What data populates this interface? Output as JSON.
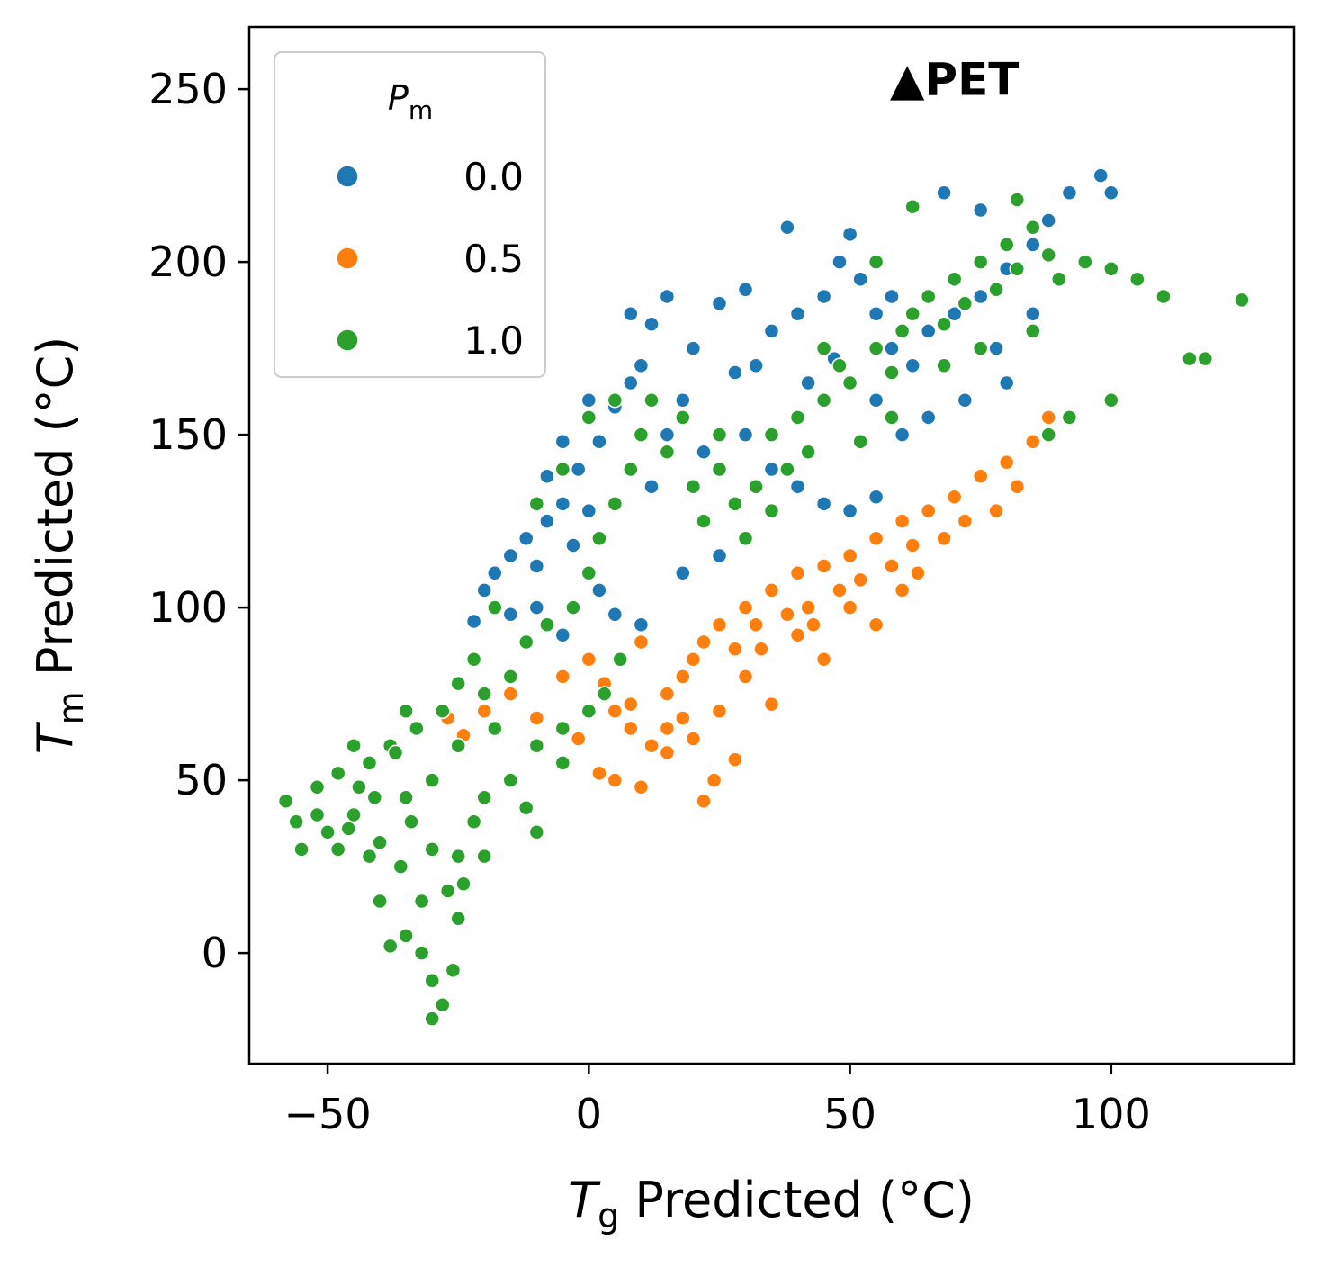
{
  "chart_data": {
    "type": "scatter",
    "xlabel": {
      "main": "T",
      "sub": "g",
      "rest": " Predicted (°C)"
    },
    "ylabel": {
      "main": "T",
      "sub": "m",
      "rest": " Predicted (°C)"
    },
    "xlim": [
      -65,
      135
    ],
    "ylim": [
      -32,
      268
    ],
    "xticks": [
      -50,
      0,
      50,
      100
    ],
    "xtick_labels": [
      "−50",
      "0",
      "50",
      "100"
    ],
    "yticks": [
      0,
      50,
      100,
      150,
      200,
      250
    ],
    "ytick_labels": [
      "0",
      "50",
      "100",
      "150",
      "200",
      "250"
    ],
    "grid": false,
    "legend": {
      "position": "top-left",
      "title": {
        "main": "P",
        "sub": "m"
      },
      "entries": [
        {
          "label": "0.0",
          "color": "#1f77b4"
        },
        {
          "label": "0.5",
          "color": "#ff7f0e"
        },
        {
          "label": "1.0",
          "color": "#2ca02c"
        }
      ]
    },
    "annotation": {
      "text": "▲PET",
      "x": 70,
      "y": 253
    },
    "series": [
      {
        "name": "0.0",
        "color": "#1f77b4",
        "points": [
          [
            -22,
            96
          ],
          [
            -20,
            105
          ],
          [
            -18,
            110
          ],
          [
            -15,
            115
          ],
          [
            -12,
            120
          ],
          [
            -10,
            112
          ],
          [
            -8,
            125
          ],
          [
            -5,
            130
          ],
          [
            -3,
            118
          ],
          [
            0,
            128
          ],
          [
            -2,
            140
          ],
          [
            2,
            148
          ],
          [
            5,
            158
          ],
          [
            8,
            165
          ],
          [
            10,
            170
          ],
          [
            12,
            182
          ],
          [
            15,
            190
          ],
          [
            8,
            185
          ],
          [
            20,
            175
          ],
          [
            18,
            160
          ],
          [
            25,
            188
          ],
          [
            28,
            168
          ],
          [
            30,
            192
          ],
          [
            35,
            180
          ],
          [
            40,
            185
          ],
          [
            45,
            190
          ],
          [
            48,
            200
          ],
          [
            52,
            195
          ],
          [
            55,
            185
          ],
          [
            58,
            175
          ],
          [
            62,
            170
          ],
          [
            65,
            180
          ],
          [
            70,
            185
          ],
          [
            75,
            190
          ],
          [
            80,
            198
          ],
          [
            85,
            205
          ],
          [
            88,
            212
          ],
          [
            92,
            220
          ],
          [
            98,
            225
          ],
          [
            100,
            220
          ],
          [
            68,
            220
          ],
          [
            75,
            215
          ],
          [
            38,
            210
          ],
          [
            50,
            208
          ],
          [
            55,
            160
          ],
          [
            60,
            150
          ],
          [
            65,
            155
          ],
          [
            72,
            160
          ],
          [
            80,
            165
          ],
          [
            30,
            150
          ],
          [
            35,
            140
          ],
          [
            40,
            135
          ],
          [
            45,
            130
          ],
          [
            50,
            128
          ],
          [
            55,
            132
          ],
          [
            25,
            115
          ],
          [
            18,
            110
          ],
          [
            10,
            95
          ],
          [
            5,
            98
          ],
          [
            -5,
            92
          ],
          [
            -10,
            100
          ],
          [
            -15,
            98
          ],
          [
            2,
            105
          ],
          [
            12,
            135
          ],
          [
            22,
            145
          ],
          [
            42,
            165
          ],
          [
            58,
            190
          ],
          [
            78,
            175
          ],
          [
            85,
            185
          ],
          [
            15,
            150
          ],
          [
            0,
            160
          ],
          [
            -5,
            148
          ],
          [
            -8,
            138
          ],
          [
            32,
            170
          ],
          [
            47,
            172
          ]
        ]
      },
      {
        "name": "0.5",
        "color": "#ff7f0e",
        "points": [
          [
            -27,
            68
          ],
          [
            -24,
            63
          ],
          [
            -20,
            70
          ],
          [
            -15,
            75
          ],
          [
            -10,
            68
          ],
          [
            -5,
            80
          ],
          [
            0,
            85
          ],
          [
            3,
            78
          ],
          [
            5,
            70
          ],
          [
            8,
            65
          ],
          [
            10,
            90
          ],
          [
            12,
            60
          ],
          [
            15,
            75
          ],
          [
            18,
            80
          ],
          [
            20,
            85
          ],
          [
            22,
            90
          ],
          [
            25,
            95
          ],
          [
            28,
            88
          ],
          [
            30,
            100
          ],
          [
            32,
            95
          ],
          [
            35,
            105
          ],
          [
            38,
            98
          ],
          [
            40,
            110
          ],
          [
            42,
            100
          ],
          [
            45,
            112
          ],
          [
            48,
            105
          ],
          [
            50,
            115
          ],
          [
            52,
            108
          ],
          [
            55,
            120
          ],
          [
            58,
            112
          ],
          [
            60,
            125
          ],
          [
            62,
            118
          ],
          [
            65,
            128
          ],
          [
            68,
            120
          ],
          [
            70,
            132
          ],
          [
            72,
            125
          ],
          [
            75,
            138
          ],
          [
            78,
            128
          ],
          [
            80,
            142
          ],
          [
            82,
            135
          ],
          [
            85,
            148
          ],
          [
            88,
            155
          ],
          [
            2,
            52
          ],
          [
            5,
            50
          ],
          [
            10,
            48
          ],
          [
            15,
            58
          ],
          [
            22,
            44
          ],
          [
            24,
            50
          ],
          [
            28,
            56
          ],
          [
            20,
            62
          ],
          [
            35,
            72
          ],
          [
            45,
            85
          ],
          [
            55,
            95
          ],
          [
            30,
            80
          ],
          [
            40,
            92
          ],
          [
            50,
            100
          ],
          [
            60,
            105
          ],
          [
            25,
            70
          ],
          [
            15,
            65
          ],
          [
            -2,
            62
          ],
          [
            8,
            72
          ],
          [
            18,
            68
          ],
          [
            33,
            88
          ],
          [
            43,
            95
          ],
          [
            63,
            110
          ]
        ]
      },
      {
        "name": "1.0",
        "color": "#2ca02c",
        "points": [
          [
            -58,
            44
          ],
          [
            -56,
            38
          ],
          [
            -55,
            30
          ],
          [
            -52,
            48
          ],
          [
            -50,
            35
          ],
          [
            -48,
            52
          ],
          [
            -45,
            40
          ],
          [
            -42,
            55
          ],
          [
            -40,
            32
          ],
          [
            -38,
            60
          ],
          [
            -36,
            25
          ],
          [
            -35,
            45
          ],
          [
            -33,
            65
          ],
          [
            -32,
            15
          ],
          [
            -30,
            50
          ],
          [
            -28,
            70
          ],
          [
            -35,
            5
          ],
          [
            -32,
            0
          ],
          [
            -30,
            -8
          ],
          [
            -28,
            -15
          ],
          [
            -30,
            -19
          ],
          [
            -26,
            -5
          ],
          [
            -25,
            10
          ],
          [
            -24,
            20
          ],
          [
            -38,
            2
          ],
          [
            -40,
            15
          ],
          [
            -42,
            28
          ],
          [
            -45,
            60
          ],
          [
            -25,
            78
          ],
          [
            -22,
            85
          ],
          [
            -20,
            75
          ],
          [
            -18,
            65
          ],
          [
            -15,
            80
          ],
          [
            -12,
            90
          ],
          [
            -10,
            60
          ],
          [
            -8,
            95
          ],
          [
            -5,
            55
          ],
          [
            -3,
            100
          ],
          [
            0,
            110
          ],
          [
            2,
            120
          ],
          [
            5,
            130
          ],
          [
            8,
            140
          ],
          [
            10,
            150
          ],
          [
            12,
            160
          ],
          [
            15,
            145
          ],
          [
            18,
            155
          ],
          [
            20,
            135
          ],
          [
            22,
            125
          ],
          [
            25,
            140
          ],
          [
            28,
            130
          ],
          [
            30,
            120
          ],
          [
            32,
            135
          ],
          [
            35,
            150
          ],
          [
            38,
            140
          ],
          [
            40,
            155
          ],
          [
            42,
            145
          ],
          [
            45,
            160
          ],
          [
            48,
            170
          ],
          [
            50,
            165
          ],
          [
            55,
            175
          ],
          [
            58,
            168
          ],
          [
            60,
            180
          ],
          [
            62,
            185
          ],
          [
            65,
            190
          ],
          [
            68,
            182
          ],
          [
            70,
            195
          ],
          [
            72,
            188
          ],
          [
            75,
            200
          ],
          [
            78,
            192
          ],
          [
            80,
            205
          ],
          [
            82,
            198
          ],
          [
            85,
            210
          ],
          [
            88,
            202
          ],
          [
            90,
            195
          ],
          [
            95,
            200
          ],
          [
            100,
            198
          ],
          [
            105,
            195
          ],
          [
            110,
            190
          ],
          [
            115,
            172
          ],
          [
            118,
            172
          ],
          [
            125,
            189
          ],
          [
            100,
            160
          ],
          [
            92,
            155
          ],
          [
            88,
            150
          ],
          [
            62,
            216
          ],
          [
            82,
            218
          ],
          [
            -20,
            45
          ],
          [
            -22,
            38
          ],
          [
            -15,
            50
          ],
          [
            -10,
            35
          ],
          [
            -5,
            65
          ],
          [
            0,
            70
          ],
          [
            -18,
            100
          ],
          [
            -25,
            28
          ],
          [
            -27,
            18
          ],
          [
            -48,
            30
          ],
          [
            -52,
            40
          ],
          [
            -44,
            48
          ],
          [
            -46,
            36
          ],
          [
            -34,
            38
          ],
          [
            -37,
            58
          ],
          [
            -41,
            45
          ],
          [
            -30,
            30
          ],
          [
            -20,
            28
          ],
          [
            -12,
            42
          ],
          [
            3,
            75
          ],
          [
            6,
            85
          ],
          [
            25,
            150
          ],
          [
            35,
            128
          ],
          [
            45,
            175
          ],
          [
            52,
            148
          ],
          [
            58,
            155
          ],
          [
            -35,
            70
          ],
          [
            -25,
            60
          ],
          [
            -10,
            130
          ],
          [
            -5,
            140
          ],
          [
            0,
            155
          ],
          [
            5,
            160
          ],
          [
            55,
            200
          ],
          [
            68,
            170
          ],
          [
            75,
            175
          ],
          [
            85,
            180
          ]
        ]
      }
    ]
  }
}
